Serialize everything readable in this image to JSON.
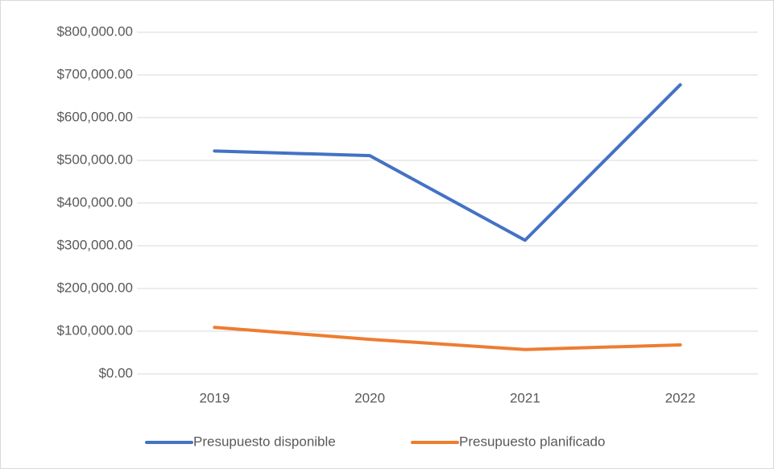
{
  "chart_data": {
    "type": "line",
    "categories": [
      "2019",
      "2020",
      "2021",
      "2022"
    ],
    "series": [
      {
        "name": "Presupuesto disponible",
        "color": "#4472c4",
        "values": [
          522000,
          511000,
          313000,
          677000
        ]
      },
      {
        "name": "Presupuesto planificado",
        "color": "#ed7d31",
        "values": [
          109000,
          81000,
          57000,
          68000
        ]
      }
    ],
    "ylim": [
      0,
      800000
    ],
    "yticks": [
      {
        "value": 0,
        "label": "$0.00"
      },
      {
        "value": 100000,
        "label": "$100,000.00"
      },
      {
        "value": 200000,
        "label": "$200,000.00"
      },
      {
        "value": 300000,
        "label": "$300,000.00"
      },
      {
        "value": 400000,
        "label": "$400,000.00"
      },
      {
        "value": 500000,
        "label": "$500,000.00"
      },
      {
        "value": 600000,
        "label": "$600,000.00"
      },
      {
        "value": 700000,
        "label": "$700,000.00"
      },
      {
        "value": 800000,
        "label": "$800,000.00"
      }
    ],
    "grid": true,
    "legend": "bottom"
  }
}
